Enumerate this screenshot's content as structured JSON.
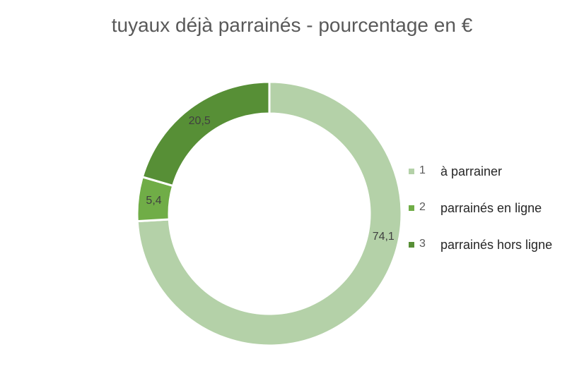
{
  "chart_data": {
    "type": "pie",
    "title": "tuyaux déjà parrainés - pourcentage en €",
    "donut": true,
    "categories": [
      "1",
      "2",
      "3"
    ],
    "category_labels": [
      "à parrainer",
      "parrainés en ligne",
      "parrainés hors ligne"
    ],
    "values": [
      74.1,
      5.4,
      20.5
    ],
    "data_labels": [
      "74,1",
      "5,4",
      "20,5"
    ],
    "colors": [
      "#b4d1a8",
      "#70ad47",
      "#578f36"
    ],
    "legend_position": "right"
  }
}
